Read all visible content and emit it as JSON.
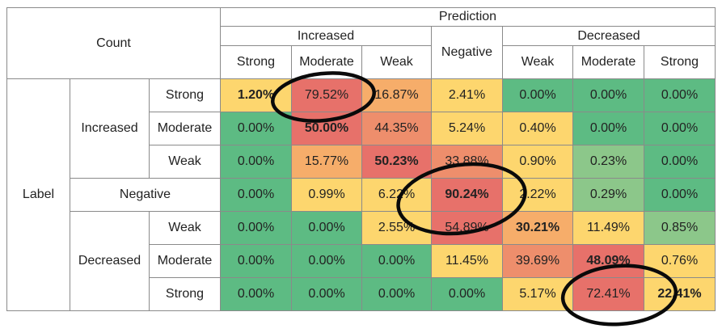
{
  "header": {
    "count": "Count",
    "prediction": "Prediction",
    "increased": "Increased",
    "negative": "Negative",
    "decreased": "Decreased",
    "pred_columns": [
      "Strong",
      "Moderate",
      "Weak",
      "Weak",
      "Moderate",
      "Strong"
    ]
  },
  "rows": {
    "label": "Label",
    "increased": "Increased",
    "negative": "Negative",
    "decreased": "Decreased",
    "inc_sub": [
      "Strong",
      "Moderate",
      "Weak"
    ],
    "dec_sub": [
      "Weak",
      "Moderate",
      "Strong"
    ]
  },
  "colors": {
    "green": "#5dbb83",
    "light_green": "#8cc78a",
    "yellow": "#fdd66e",
    "orange": "#f6ad6a",
    "salmon": "#ee8e6c",
    "red": "#e7716a",
    "circle": "#0a0a0a"
  },
  "cells": [
    [
      {
        "v": "1.20%",
        "c": "yellow",
        "b": true
      },
      {
        "v": "79.52%",
        "c": "red",
        "b": false
      },
      {
        "v": "16.87%",
        "c": "orange",
        "b": false
      },
      {
        "v": "2.41%",
        "c": "yellow",
        "b": false
      },
      {
        "v": "0.00%",
        "c": "green",
        "b": false
      },
      {
        "v": "0.00%",
        "c": "green",
        "b": false
      },
      {
        "v": "0.00%",
        "c": "green",
        "b": false
      }
    ],
    [
      {
        "v": "0.00%",
        "c": "green",
        "b": false
      },
      {
        "v": "50.00%",
        "c": "red",
        "b": true
      },
      {
        "v": "44.35%",
        "c": "salmon",
        "b": false
      },
      {
        "v": "5.24%",
        "c": "yellow",
        "b": false
      },
      {
        "v": "0.40%",
        "c": "yellow",
        "b": false
      },
      {
        "v": "0.00%",
        "c": "green",
        "b": false
      },
      {
        "v": "0.00%",
        "c": "green",
        "b": false
      }
    ],
    [
      {
        "v": "0.00%",
        "c": "green",
        "b": false
      },
      {
        "v": "15.77%",
        "c": "orange",
        "b": false
      },
      {
        "v": "50.23%",
        "c": "red",
        "b": true
      },
      {
        "v": "33.88%",
        "c": "salmon",
        "b": false
      },
      {
        "v": "0.90%",
        "c": "yellow",
        "b": false
      },
      {
        "v": "0.23%",
        "c": "light_green",
        "b": false
      },
      {
        "v": "0.00%",
        "c": "green",
        "b": false
      }
    ],
    [
      {
        "v": "0.00%",
        "c": "green",
        "b": false
      },
      {
        "v": "0.99%",
        "c": "yellow",
        "b": false
      },
      {
        "v": "6.22%",
        "c": "yellow",
        "b": false
      },
      {
        "v": "90.24%",
        "c": "red",
        "b": true
      },
      {
        "v": "2.22%",
        "c": "yellow",
        "b": false
      },
      {
        "v": "0.29%",
        "c": "light_green",
        "b": false
      },
      {
        "v": "0.00%",
        "c": "green",
        "b": false
      }
    ],
    [
      {
        "v": "0.00%",
        "c": "green",
        "b": false
      },
      {
        "v": "0.00%",
        "c": "green",
        "b": false
      },
      {
        "v": "2.55%",
        "c": "yellow",
        "b": false
      },
      {
        "v": "54.89%",
        "c": "red",
        "b": false
      },
      {
        "v": "30.21%",
        "c": "orange",
        "b": true
      },
      {
        "v": "11.49%",
        "c": "yellow",
        "b": false
      },
      {
        "v": "0.85%",
        "c": "light_green",
        "b": false
      }
    ],
    [
      {
        "v": "0.00%",
        "c": "green",
        "b": false
      },
      {
        "v": "0.00%",
        "c": "green",
        "b": false
      },
      {
        "v": "0.00%",
        "c": "green",
        "b": false
      },
      {
        "v": "11.45%",
        "c": "yellow",
        "b": false
      },
      {
        "v": "39.69%",
        "c": "salmon",
        "b": false
      },
      {
        "v": "48.09%",
        "c": "red",
        "b": true
      },
      {
        "v": "0.76%",
        "c": "yellow",
        "b": false
      }
    ],
    [
      {
        "v": "0.00%",
        "c": "green",
        "b": false
      },
      {
        "v": "0.00%",
        "c": "green",
        "b": false
      },
      {
        "v": "0.00%",
        "c": "green",
        "b": false
      },
      {
        "v": "0.00%",
        "c": "green",
        "b": false
      },
      {
        "v": "5.17%",
        "c": "yellow",
        "b": false
      },
      {
        "v": "72.41%",
        "c": "red",
        "b": false
      },
      {
        "v": "22.41%",
        "c": "yellow",
        "b": true
      }
    ]
  ]
}
